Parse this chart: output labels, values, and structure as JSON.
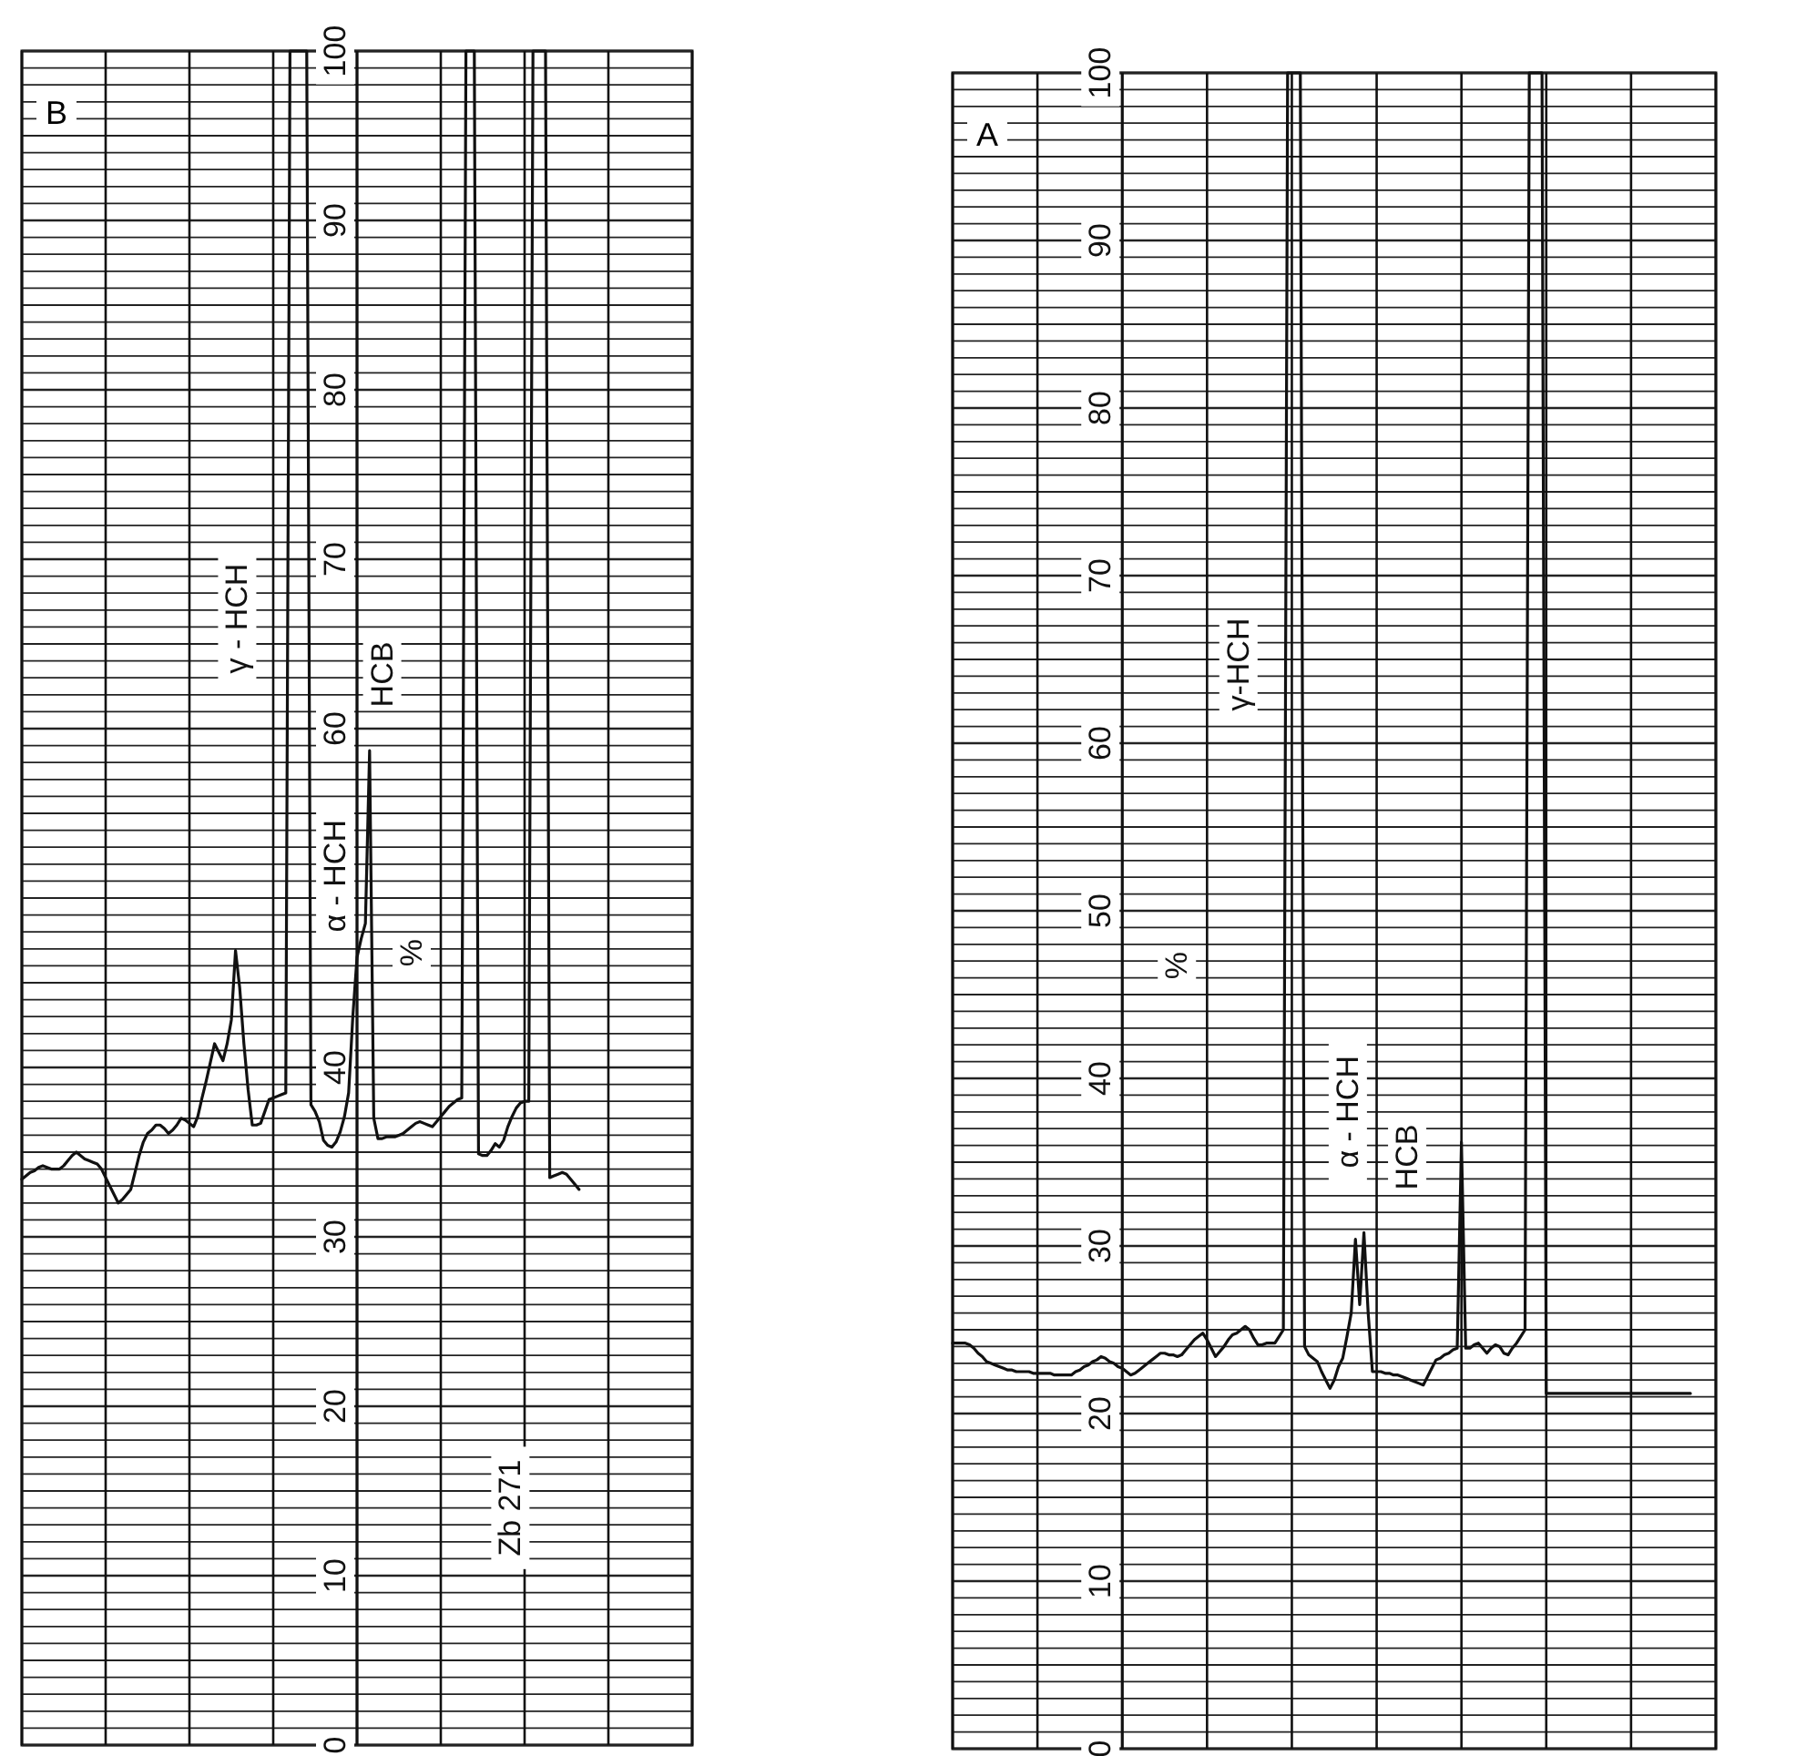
{
  "chart_data": [
    {
      "type": "line",
      "title": "B",
      "ylabel": "%",
      "color": "#111111",
      "grid": true,
      "tick_labels": "y",
      "categories": [
        null,
        null,
        null,
        null,
        null,
        null,
        null,
        null,
        null,
        null,
        null,
        null,
        null,
        null,
        null,
        null,
        null,
        null,
        null,
        null,
        null,
        null,
        null,
        null,
        null,
        null,
        null,
        null,
        null,
        null,
        null,
        null,
        null,
        null,
        null,
        null,
        null,
        null,
        null,
        null,
        null,
        null,
        null,
        null,
        null,
        null,
        null,
        null,
        null,
        null,
        null,
        null,
        null,
        null,
        null,
        null,
        null,
        null,
        null,
        null,
        null,
        null,
        null,
        null,
        null,
        null,
        null,
        null,
        null,
        null,
        null,
        null,
        null,
        null,
        null,
        null,
        null,
        null,
        null,
        null,
        null,
        null,
        null,
        null,
        null,
        null,
        null,
        null,
        null,
        null,
        null,
        null,
        null,
        null,
        null,
        null,
        null,
        null,
        null,
        null,
        null,
        null,
        null,
        null,
        null,
        null,
        null,
        null,
        null,
        null,
        null,
        null,
        null,
        null,
        null,
        null,
        null,
        null,
        null,
        null,
        null,
        null,
        null,
        null,
        null,
        null,
        null,
        null,
        null,
        null,
        null,
        null,
        null,
        null,
        null,
        null,
        null,
        null,
        null,
        null,
        null,
        null,
        null,
        null,
        null,
        null,
        null,
        null,
        null,
        null,
        null,
        null,
        null,
        null,
        null,
        null,
        null,
        null,
        null,
        null,
        null
      ],
      "ylim": [
        0,
        100
      ],
      "yticks": [
        0,
        {
          "value": 1,
          "label": null
        },
        {
          "value": 2,
          "label": null
        },
        {
          "value": 3,
          "label": null
        },
        {
          "value": 4,
          "label": null
        },
        {
          "value": 5,
          "label": null
        },
        {
          "value": 6,
          "label": null
        },
        {
          "value": 7,
          "label": null
        },
        {
          "value": 8,
          "label": null
        },
        {
          "value": 9,
          "label": null
        },
        10,
        {
          "value": 11,
          "label": null
        },
        {
          "value": 12,
          "label": null
        },
        {
          "value": 13,
          "label": null
        },
        {
          "value": 14,
          "label": null
        },
        {
          "value": 15,
          "label": null
        },
        {
          "value": 16,
          "label": null
        },
        {
          "value": 17,
          "label": null
        },
        {
          "value": 18,
          "label": null
        },
        {
          "value": 19,
          "label": null
        },
        20,
        {
          "value": 21,
          "label": null
        },
        {
          "value": 22,
          "label": null
        },
        {
          "value": 23,
          "label": null
        },
        {
          "value": 24,
          "label": null
        },
        {
          "value": 25,
          "label": null
        },
        {
          "value": 26,
          "label": null
        },
        {
          "value": 27,
          "label": null
        },
        {
          "value": 28,
          "label": null
        },
        {
          "value": 29,
          "label": null
        },
        30,
        {
          "value": 31,
          "label": null
        },
        {
          "value": 32,
          "label": null
        },
        {
          "value": 33,
          "label": null
        },
        {
          "value": 34,
          "label": null
        },
        {
          "value": 35,
          "label": null
        },
        {
          "value": 36,
          "label": null
        },
        {
          "value": 37,
          "label": null
        },
        {
          "value": 38,
          "label": null
        },
        {
          "value": 39,
          "label": null
        },
        40,
        {
          "value": 41,
          "label": null
        },
        {
          "value": 42,
          "label": null
        },
        {
          "value": 43,
          "label": null
        },
        {
          "value": 44,
          "label": null
        },
        {
          "value": 45,
          "label": null
        },
        {
          "value": 46,
          "label": null
        },
        {
          "value": 47,
          "label": null
        },
        {
          "value": 48,
          "label": null
        },
        {
          "value": 49,
          "label": null
        },
        {
          "value": 50,
          "label": null
        },
        {
          "value": 51,
          "label": null
        },
        {
          "value": 52,
          "label": null
        },
        {
          "value": 53,
          "label": null
        },
        {
          "value": 54,
          "label": null
        },
        {
          "value": 55,
          "label": null
        },
        {
          "value": 56,
          "label": null
        },
        {
          "value": 57,
          "label": null
        },
        {
          "value": 58,
          "label": null
        },
        {
          "value": 59,
          "label": null
        },
        60,
        {
          "value": 61,
          "label": null
        },
        {
          "value": 62,
          "label": null
        },
        {
          "value": 63,
          "label": null
        },
        {
          "value": 64,
          "label": null
        },
        {
          "value": 65,
          "label": null
        },
        {
          "value": 66,
          "label": null
        },
        {
          "value": 67,
          "label": null
        },
        {
          "value": 68,
          "label": null
        },
        {
          "value": 69,
          "label": null
        },
        70,
        {
          "value": 71,
          "label": null
        },
        {
          "value": 72,
          "label": null
        },
        {
          "value": 73,
          "label": null
        },
        {
          "value": 74,
          "label": null
        },
        {
          "value": 75,
          "label": null
        },
        {
          "value": 76,
          "label": null
        },
        {
          "value": 77,
          "label": null
        },
        {
          "value": 78,
          "label": null
        },
        {
          "value": 79,
          "label": null
        },
        80,
        {
          "value": 81,
          "label": null
        },
        {
          "value": 82,
          "label": null
        },
        {
          "value": 83,
          "label": null
        },
        {
          "value": 84,
          "label": null
        },
        {
          "value": 85,
          "label": null
        },
        {
          "value": 86,
          "label": null
        },
        {
          "value": 87,
          "label": null
        },
        {
          "value": 88,
          "label": null
        },
        {
          "value": 89,
          "label": null
        },
        90,
        {
          "value": 91,
          "label": null
        },
        {
          "value": 92,
          "label": null
        },
        {
          "value": 93,
          "label": null
        },
        {
          "value": 94,
          "label": null
        },
        {
          "value": 95,
          "label": null
        },
        {
          "value": 96,
          "label": null
        },
        {
          "value": 97,
          "label": null
        },
        {
          "value": 98,
          "label": null
        },
        {
          "value": 99,
          "label": null
        },
        100
      ],
      "values": [
        33.4,
        33.6,
        33.8,
        33.9,
        34.1,
        34.2,
        34.1,
        34.0,
        34.0,
        34.0,
        34.2,
        34.5,
        34.8,
        35.0,
        34.8,
        34.6,
        34.5,
        34.4,
        34.3,
        34.0,
        33.5,
        33.0,
        32.5,
        32.0,
        32.2,
        32.5,
        32.8,
        33.8,
        34.8,
        35.6,
        36.1,
        36.3,
        36.6,
        36.6,
        36.4,
        36.1,
        36.3,
        36.6,
        37.0,
        36.9,
        36.7,
        36.5,
        37.1,
        38.2,
        39.2,
        40.3,
        41.4,
        40.9,
        40.4,
        41.4,
        42.8,
        46.9,
        44.7,
        41.4,
        38.7,
        36.6,
        36.6,
        36.7,
        37.4,
        38.1,
        38.2,
        38.3,
        38.4,
        38.5,
        100,
        100,
        100,
        100,
        100,
        37.8,
        37.4,
        36.8,
        35.7,
        35.4,
        35.3,
        35.6,
        36.2,
        37.1,
        38.5,
        43,
        46.5,
        47.6,
        48.5,
        58.7,
        37,
        35.8,
        35.8,
        35.9,
        35.9,
        35.9,
        36.0,
        36.1,
        36.3,
        36.5,
        36.7,
        36.8,
        36.7,
        36.6,
        36.5,
        36.8,
        37.1,
        37.4,
        37.7,
        37.9,
        38.1,
        38.2,
        100,
        100,
        100,
        34.9,
        34.8,
        34.8,
        35.1,
        35.5,
        35.3,
        35.7,
        36.5,
        37.1,
        37.6,
        37.9,
        38,
        38,
        100,
        100,
        100,
        100,
        33.5,
        33.6,
        33.7,
        33.8,
        33.7,
        33.4,
        33.1,
        32.8,
        null,
        null,
        null,
        null,
        null,
        null,
        null,
        null,
        null,
        null,
        null,
        null,
        null,
        null,
        null,
        null,
        null,
        null,
        null,
        null,
        null,
        null,
        null,
        null,
        null,
        null,
        null
      ],
      "annotations": [
        "γ - HCH",
        "α - HCH",
        "HCB",
        "Zb 271"
      ]
    },
    {
      "type": "line",
      "title": "A",
      "ylabel": "%",
      "color": "#111111",
      "grid": true,
      "tick_labels": "y",
      "categories": [
        null,
        null,
        null,
        null,
        null,
        null,
        null,
        null,
        null,
        null,
        null,
        null,
        null,
        null,
        null,
        null,
        null,
        null,
        null,
        null,
        null,
        null,
        null,
        null,
        null,
        null,
        null,
        null,
        null,
        null,
        null,
        null,
        null,
        null,
        null,
        null,
        null,
        null,
        null,
        null,
        null,
        null,
        null,
        null,
        null,
        null,
        null,
        null,
        null,
        null,
        null,
        null,
        null,
        null,
        null,
        null,
        null,
        null,
        null,
        null,
        null,
        null,
        null,
        null,
        null,
        null,
        null,
        null,
        null,
        null,
        null,
        null,
        null,
        null,
        null,
        null,
        null,
        null,
        null,
        null,
        null,
        null,
        null,
        null,
        null,
        null,
        null,
        null,
        null,
        null,
        null,
        null,
        null,
        null,
        null,
        null,
        null,
        null,
        null,
        null,
        null,
        null,
        null,
        null,
        null,
        null,
        null,
        null,
        null,
        null,
        null,
        null,
        null,
        null,
        null,
        null,
        null,
        null,
        null,
        null,
        null,
        null,
        null,
        null,
        null,
        null,
        null,
        null,
        null,
        null,
        null,
        null,
        null,
        null,
        null,
        null,
        null,
        null,
        null,
        null,
        null,
        null,
        null,
        null,
        null,
        null,
        null,
        null,
        null,
        null,
        null,
        null,
        null,
        null,
        null,
        null,
        null,
        null,
        null,
        null,
        null,
        null,
        null,
        null,
        null,
        null,
        null,
        null,
        null,
        null,
        null,
        null,
        null,
        null,
        null,
        null,
        null,
        null,
        null,
        null,
        null
      ],
      "ylim": [
        0,
        100
      ],
      "yticks": [
        0,
        {
          "value": 1,
          "label": null
        },
        {
          "value": 2,
          "label": null
        },
        {
          "value": 3,
          "label": null
        },
        {
          "value": 4,
          "label": null
        },
        {
          "value": 5,
          "label": null
        },
        {
          "value": 6,
          "label": null
        },
        {
          "value": 7,
          "label": null
        },
        {
          "value": 8,
          "label": null
        },
        {
          "value": 9,
          "label": null
        },
        10,
        {
          "value": 11,
          "label": null
        },
        {
          "value": 12,
          "label": null
        },
        {
          "value": 13,
          "label": null
        },
        {
          "value": 14,
          "label": null
        },
        {
          "value": 15,
          "label": null
        },
        {
          "value": 16,
          "label": null
        },
        {
          "value": 17,
          "label": null
        },
        {
          "value": 18,
          "label": null
        },
        {
          "value": 19,
          "label": null
        },
        20,
        {
          "value": 21,
          "label": null
        },
        {
          "value": 22,
          "label": null
        },
        {
          "value": 23,
          "label": null
        },
        {
          "value": 24,
          "label": null
        },
        {
          "value": 25,
          "label": null
        },
        {
          "value": 26,
          "label": null
        },
        {
          "value": 27,
          "label": null
        },
        {
          "value": 28,
          "label": null
        },
        {
          "value": 29,
          "label": null
        },
        30,
        {
          "value": 31,
          "label": null
        },
        {
          "value": 32,
          "label": null
        },
        {
          "value": 33,
          "label": null
        },
        {
          "value": 34,
          "label": null
        },
        {
          "value": 35,
          "label": null
        },
        {
          "value": 36,
          "label": null
        },
        {
          "value": 37,
          "label": null
        },
        {
          "value": 38,
          "label": null
        },
        {
          "value": 39,
          "label": null
        },
        40,
        {
          "value": 41,
          "label": null
        },
        {
          "value": 42,
          "label": null
        },
        {
          "value": 43,
          "label": null
        },
        {
          "value": 44,
          "label": null
        },
        {
          "value": 45,
          "label": null
        },
        {
          "value": 46,
          "label": null
        },
        {
          "value": 47,
          "label": null
        },
        {
          "value": 48,
          "label": null
        },
        {
          "value": 49,
          "label": null
        },
        50,
        {
          "value": 51,
          "label": null
        },
        {
          "value": 52,
          "label": null
        },
        {
          "value": 53,
          "label": null
        },
        {
          "value": 54,
          "label": null
        },
        {
          "value": 55,
          "label": null
        },
        {
          "value": 56,
          "label": null
        },
        {
          "value": 57,
          "label": null
        },
        {
          "value": 58,
          "label": null
        },
        {
          "value": 59,
          "label": null
        },
        60,
        {
          "value": 61,
          "label": null
        },
        {
          "value": 62,
          "label": null
        },
        {
          "value": 63,
          "label": null
        },
        {
          "value": 64,
          "label": null
        },
        {
          "value": 65,
          "label": null
        },
        {
          "value": 66,
          "label": null
        },
        {
          "value": 67,
          "label": null
        },
        {
          "value": 68,
          "label": null
        },
        {
          "value": 69,
          "label": null
        },
        70,
        {
          "value": 71,
          "label": null
        },
        {
          "value": 72,
          "label": null
        },
        {
          "value": 73,
          "label": null
        },
        {
          "value": 74,
          "label": null
        },
        {
          "value": 75,
          "label": null
        },
        {
          "value": 76,
          "label": null
        },
        {
          "value": 77,
          "label": null
        },
        {
          "value": 78,
          "label": null
        },
        {
          "value": 79,
          "label": null
        },
        80,
        {
          "value": 81,
          "label": null
        },
        {
          "value": 82,
          "label": null
        },
        {
          "value": 83,
          "label": null
        },
        {
          "value": 84,
          "label": null
        },
        {
          "value": 85,
          "label": null
        },
        {
          "value": 86,
          "label": null
        },
        {
          "value": 87,
          "label": null
        },
        {
          "value": 88,
          "label": null
        },
        {
          "value": 89,
          "label": null
        },
        90,
        {
          "value": 91,
          "label": null
        },
        {
          "value": 92,
          "label": null
        },
        {
          "value": 93,
          "label": null
        },
        {
          "value": 94,
          "label": null
        },
        {
          "value": 95,
          "label": null
        },
        {
          "value": 96,
          "label": null
        },
        {
          "value": 97,
          "label": null
        },
        {
          "value": 98,
          "label": null
        },
        {
          "value": 99,
          "label": null
        },
        100
      ],
      "values": [
        24.2,
        24.2,
        24.2,
        24.2,
        24.1,
        23.9,
        23.6,
        23.4,
        23.1,
        23.0,
        22.9,
        22.8,
        22.7,
        22.6,
        22.6,
        22.5,
        22.5,
        22.5,
        22.5,
        22.4,
        22.4,
        22.4,
        22.4,
        22.4,
        22.3,
        22.3,
        22.3,
        22.3,
        22.3,
        22.5,
        22.6,
        22.8,
        22.9,
        23.1,
        23.2,
        23.4,
        23.3,
        23.1,
        23.0,
        22.8,
        22.7,
        22.5,
        22.3,
        22.4,
        22.6,
        22.8,
        23.0,
        23.2,
        23.4,
        23.6,
        23.6,
        23.5,
        23.5,
        23.4,
        23.5,
        23.8,
        24.1,
        24.4,
        24.6,
        24.8,
        24.4,
        23.9,
        23.4,
        23.7,
        24.0,
        24.4,
        24.7,
        24.8,
        25.0,
        25.2,
        25.0,
        24.5,
        24.1,
        24.1,
        24.2,
        24.2,
        24.2,
        24.6,
        25.0,
        100,
        100,
        100,
        100,
        24.0,
        23.5,
        23.3,
        23.1,
        22.5,
        22.0,
        21.5,
        22.0,
        22.8,
        23.3,
        24.6,
        26.0,
        30.4,
        26.5,
        30.8,
        26.0,
        22.5,
        22.5,
        22.5,
        22.4,
        22.4,
        22.3,
        22.3,
        22.2,
        22.1,
        22.0,
        21.9,
        21.8,
        21.7,
        22.2,
        22.7,
        23.2,
        23.3,
        23.5,
        23.6,
        23.8,
        23.9,
        36.2,
        23.9,
        23.9,
        24.1,
        24.2,
        23.9,
        23.6,
        23.9,
        24.1,
        24.0,
        23.6,
        23.5,
        23.9,
        24.2,
        24.6,
        25.0,
        100,
        100,
        100,
        100,
        21.2,
        21.2,
        21.2,
        21.2,
        21.2,
        21.2,
        21.2,
        21.2,
        21.2,
        21.2,
        21.2,
        21.2,
        21.2,
        21.2,
        21.2,
        21.2,
        21.2,
        21.2,
        21.2,
        21.2,
        21.2,
        21.2,
        21.2,
        21.2,
        21.2,
        21.2,
        21.2,
        21.2,
        21.2,
        21.2,
        21.2,
        21.2,
        21.2,
        21.2,
        21.2,
        null,
        null,
        null,
        null,
        null,
        null
      ],
      "annotations": [
        "γ-HCH",
        "α - HCH",
        "HCB"
      ]
    }
  ]
}
